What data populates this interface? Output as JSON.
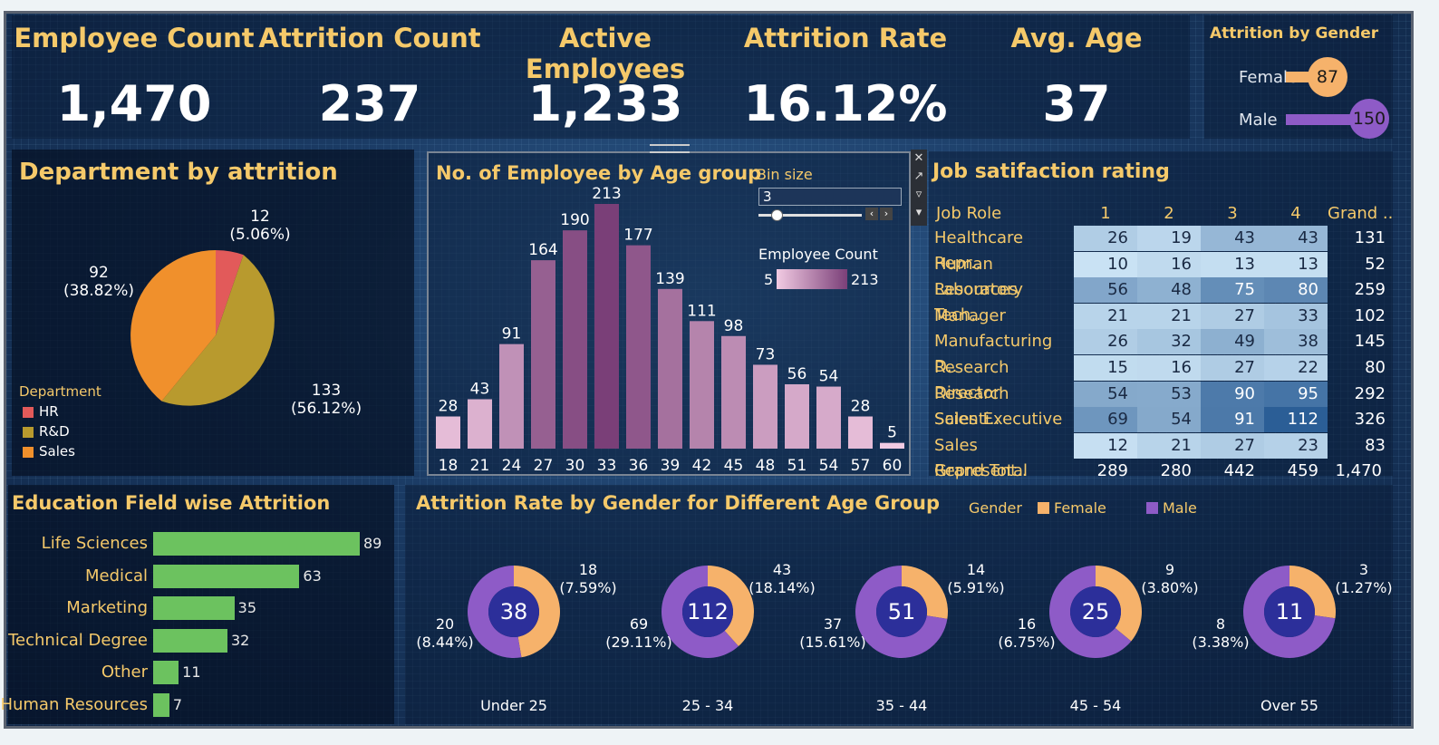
{
  "kpis": [
    {
      "label": "Employee Count",
      "value": "1,470"
    },
    {
      "label": "Attrition Count",
      "value": "237"
    },
    {
      "label": "Active Employees",
      "value": "1,233"
    },
    {
      "label": "Attrition Rate",
      "value": "16.12%"
    },
    {
      "label": "Avg. Age",
      "value": "37"
    }
  ],
  "gender": {
    "title": "Attrition by Gender",
    "rows": [
      {
        "label": "Female",
        "value": "87",
        "color": "#f6b26b"
      },
      {
        "label": "Male",
        "value": "150",
        "color": "#8e5bc7"
      }
    ]
  },
  "department": {
    "title": "Department by attrition",
    "legend_title": "Department",
    "legend": [
      {
        "label": "HR",
        "color": "#e25a5a"
      },
      {
        "label": "R&D",
        "color": "#b89a2e"
      },
      {
        "label": "Sales",
        "color": "#f0902c"
      }
    ],
    "labels": [
      {
        "value": "12",
        "pct": "(5.06%)"
      },
      {
        "value": "133",
        "pct": "(56.12%)"
      },
      {
        "value": "92",
        "pct": "(38.82%)"
      }
    ]
  },
  "agegroup": {
    "title": "No. of Employee by Age group",
    "bin_label": "Bin size",
    "bin_value": "3",
    "legend_title": "Employee Count",
    "legend_min": "5",
    "legend_max": "213"
  },
  "chart_data": {
    "type": "bar",
    "title": "No. of Employee by Age group",
    "categories": [
      "18",
      "21",
      "24",
      "27",
      "30",
      "33",
      "36",
      "39",
      "42",
      "45",
      "48",
      "51",
      "54",
      "57",
      "60"
    ],
    "values": [
      28,
      43,
      91,
      164,
      190,
      213,
      177,
      139,
      111,
      98,
      73,
      56,
      54,
      28,
      5
    ]
  },
  "job": {
    "title": "Job satifaction rating",
    "headers": [
      "Job Role",
      "1",
      "2",
      "3",
      "4",
      "Grand .."
    ],
    "rows": [
      {
        "role": "Healthcare Repr..",
        "v": [
          26,
          19,
          43,
          43
        ],
        "total": "131"
      },
      {
        "role": "Human Resources",
        "v": [
          10,
          16,
          13,
          13
        ],
        "total": "52"
      },
      {
        "role": "Laboratory Tech..",
        "v": [
          56,
          48,
          75,
          80
        ],
        "total": "259"
      },
      {
        "role": "Manager",
        "v": [
          21,
          21,
          27,
          33
        ],
        "total": "102"
      },
      {
        "role": "Manufacturing D..",
        "v": [
          26,
          32,
          49,
          38
        ],
        "total": "145"
      },
      {
        "role": "Research Director",
        "v": [
          15,
          16,
          27,
          22
        ],
        "total": "80"
      },
      {
        "role": "Research Scienti..",
        "v": [
          54,
          53,
          90,
          95
        ],
        "total": "292"
      },
      {
        "role": "Sales Executive",
        "v": [
          69,
          54,
          91,
          112
        ],
        "total": "326"
      },
      {
        "role": "Sales Represent..",
        "v": [
          12,
          21,
          27,
          23
        ],
        "total": "83"
      }
    ],
    "grand_label": "Grand Total",
    "grand": [
      "289",
      "280",
      "442",
      "459",
      "1,470"
    ]
  },
  "education": {
    "title": "Education Field wise Attrition",
    "items": [
      {
        "label": "Life Sciences",
        "value": 89
      },
      {
        "label": "Medical",
        "value": 63
      },
      {
        "label": "Marketing",
        "value": 35
      },
      {
        "label": "Technical Degree",
        "value": 32
      },
      {
        "label": "Other",
        "value": 11
      },
      {
        "label": "Human Resources",
        "value": 7
      }
    ]
  },
  "donuts": {
    "title": "Attrition Rate by Gender for Different Age Group",
    "legend_title": "Gender",
    "legend": [
      {
        "label": "Female",
        "color": "#f6b26b"
      },
      {
        "label": "Male",
        "color": "#8e5bc7"
      }
    ],
    "groups": [
      {
        "label": "Under 25",
        "total": "38",
        "female": 18,
        "male": 20,
        "f_val": "18",
        "f_pct": "(7.59%)",
        "m_val": "20",
        "m_pct": "(8.44%)"
      },
      {
        "label": "25 - 34",
        "total": "112",
        "female": 43,
        "male": 69,
        "f_val": "43",
        "f_pct": "(18.14%)",
        "m_val": "69",
        "m_pct": "(29.11%)"
      },
      {
        "label": "35 - 44",
        "total": "51",
        "female": 14,
        "male": 37,
        "f_val": "14",
        "f_pct": "(5.91%)",
        "m_val": "37",
        "m_pct": "(15.61%)"
      },
      {
        "label": "45 - 54",
        "total": "25",
        "female": 9,
        "male": 16,
        "f_val": "9",
        "f_pct": "(3.80%)",
        "m_val": "16",
        "m_pct": "(6.75%)"
      },
      {
        "label": "Over 55",
        "total": "11",
        "female": 3,
        "male": 8,
        "f_val": "3",
        "f_pct": "(1.27%)",
        "m_val": "8",
        "m_pct": "(3.38%)"
      }
    ]
  }
}
